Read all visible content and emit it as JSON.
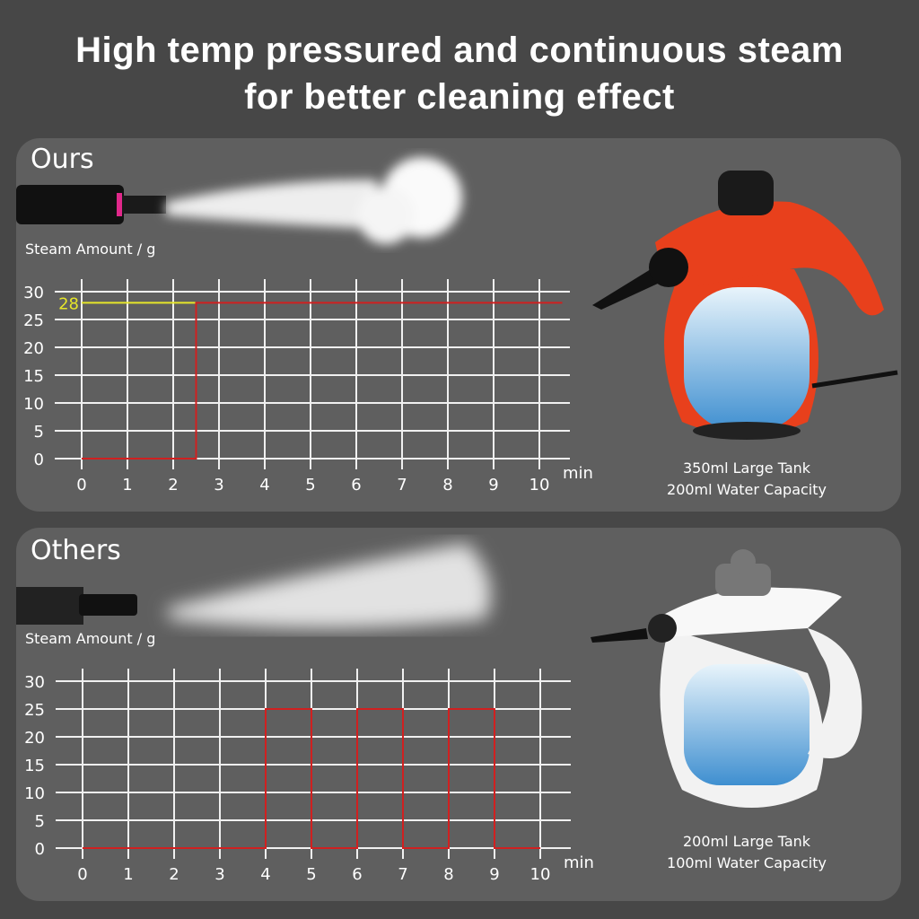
{
  "header": {
    "line1": "High temp pressured and continuous steam",
    "line2": "for better cleaning effect"
  },
  "ours": {
    "label": "Ours",
    "caption_line1": "350ml Large Tank",
    "caption_line2": "200ml Water Capacity",
    "product_color": "#e8401c"
  },
  "others": {
    "label": "Others",
    "caption_line1": "200ml Large Tank",
    "caption_line2": "100ml Water Capacity",
    "product_color": "#f2f2f2"
  },
  "chart_data": [
    {
      "type": "line",
      "ylabel": "Steam Amount / g",
      "xlabel": "min",
      "xlim": [
        0,
        10
      ],
      "ylim": [
        0,
        30
      ],
      "xticks": [
        0,
        1,
        2,
        3,
        4,
        5,
        6,
        7,
        8,
        9,
        10
      ],
      "yticks": [
        0,
        5,
        10,
        15,
        20,
        25,
        30
      ],
      "grid": true,
      "line_color": "#d02020",
      "annotation": {
        "text": "28",
        "y": 28,
        "color": "#e6e62a"
      },
      "points": [
        [
          0,
          0
        ],
        [
          2.5,
          0
        ],
        [
          2.5,
          28
        ],
        [
          10.5,
          28
        ]
      ]
    },
    {
      "type": "line",
      "ylabel": "Steam Amount / g",
      "xlabel": "min",
      "xlim": [
        0,
        10
      ],
      "ylim": [
        0,
        30
      ],
      "xticks": [
        0,
        1,
        2,
        3,
        4,
        5,
        6,
        7,
        8,
        9,
        10
      ],
      "yticks": [
        0,
        5,
        10,
        15,
        20,
        25,
        30
      ],
      "grid": true,
      "line_color": "#d02020",
      "points": [
        [
          0,
          0
        ],
        [
          4,
          0
        ],
        [
          4,
          25
        ],
        [
          5,
          25
        ],
        [
          5,
          0
        ],
        [
          6,
          0
        ],
        [
          6,
          25
        ],
        [
          7,
          25
        ],
        [
          7,
          0
        ],
        [
          8,
          0
        ],
        [
          8,
          25
        ],
        [
          9,
          25
        ],
        [
          9,
          0
        ],
        [
          10,
          0
        ]
      ]
    }
  ]
}
